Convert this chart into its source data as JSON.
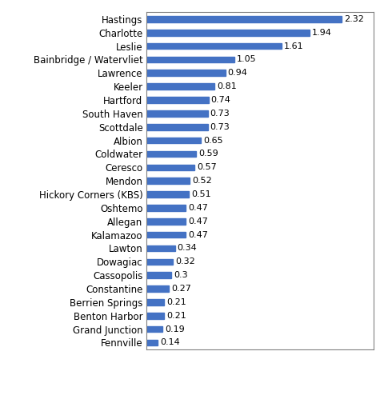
{
  "categories": [
    "Fennville",
    "Grand Junction",
    "Benton Harbor",
    "Berrien Springs",
    "Constantine",
    "Cassopolis",
    "Dowagiac",
    "Lawton",
    "Kalamazoo",
    "Allegan",
    "Oshtemo",
    "Hickory Corners (KBS)",
    "Mendon",
    "Ceresco",
    "Coldwater",
    "Albion",
    "Scottdale",
    "South Haven",
    "Hartford",
    "Keeler",
    "Lawrence",
    "Bainbridge / Watervliet",
    "Leslie",
    "Charlotte",
    "Hastings"
  ],
  "values": [
    0.14,
    0.19,
    0.21,
    0.21,
    0.27,
    0.3,
    0.32,
    0.34,
    0.47,
    0.47,
    0.47,
    0.51,
    0.52,
    0.57,
    0.59,
    0.65,
    0.73,
    0.73,
    0.74,
    0.81,
    0.94,
    1.05,
    1.61,
    1.94,
    2.32
  ],
  "bar_color": "#4472C4",
  "label_color": "#000000",
  "background_color": "#FFFFFF",
  "border_color": "#808080",
  "value_fontsize": 8.0,
  "label_fontsize": 8.5,
  "xlim": [
    0,
    2.7
  ],
  "bar_height": 0.45
}
